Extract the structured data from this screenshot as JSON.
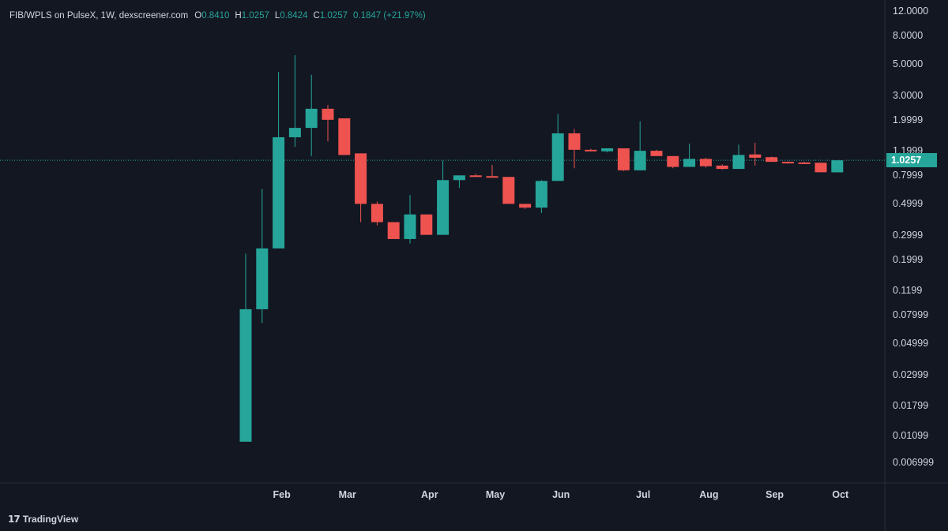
{
  "legend": {
    "symbol": "FIB/WPLS on PulseX, 1W, dexscreener.com",
    "o_key": "O",
    "o_val": "0.8410",
    "h_key": "H",
    "h_val": "1.0257",
    "l_key": "L",
    "l_val": "0.8424",
    "c_key": "C",
    "c_val": "1.0257",
    "change": "0.1847 (+21.97%)"
  },
  "brand": {
    "mark": "17",
    "name": "TradingView"
  },
  "colors": {
    "background": "#131722",
    "up": "#26a69a",
    "down": "#ef5350",
    "axis_line": "#2a2e39"
  },
  "chart_data": {
    "type": "candlestick",
    "y_scale": "log",
    "ylim": [
      0.0055,
      13.0
    ],
    "y_ticks": [
      "12.0000",
      "8.0000",
      "5.0000",
      "3.0000",
      "1.9999",
      "1.1999",
      "0.7999",
      "0.4999",
      "0.2999",
      "0.1999",
      "0.1199",
      "0.07999",
      "0.04999",
      "0.02999",
      "0.01799",
      "0.01099",
      "0.006999"
    ],
    "x_ticks": [
      "Feb",
      "Mar",
      "Apr",
      "May",
      "Jun",
      "Jul",
      "Aug",
      "Sep",
      "Oct"
    ],
    "last_price": "1.0257",
    "candles": [
      {
        "week": "Jan W4",
        "open": 0.0099,
        "high": 0.22,
        "low": 0.0099,
        "close": 0.088
      },
      {
        "week": "Jan W5",
        "open": 0.088,
        "high": 0.64,
        "low": 0.07,
        "close": 0.24
      },
      {
        "week": "Feb W1",
        "open": 0.24,
        "high": 4.4,
        "low": 0.24,
        "close": 1.5
      },
      {
        "week": "Feb W2",
        "open": 1.5,
        "high": 5.8,
        "low": 1.28,
        "close": 1.75
      },
      {
        "week": "Feb W3",
        "open": 1.75,
        "high": 4.2,
        "low": 1.1,
        "close": 2.4
      },
      {
        "week": "Feb W4",
        "open": 2.4,
        "high": 2.55,
        "low": 1.4,
        "close": 2.0
      },
      {
        "week": "Mar W1",
        "open": 2.05,
        "high": 2.05,
        "low": 1.12,
        "close": 1.12
      },
      {
        "week": "Mar W2",
        "open": 1.15,
        "high": 1.15,
        "low": 0.37,
        "close": 0.5
      },
      {
        "week": "Mar W3",
        "open": 0.5,
        "high": 0.52,
        "low": 0.35,
        "close": 0.37
      },
      {
        "week": "Mar W4",
        "open": 0.37,
        "high": 0.37,
        "low": 0.28,
        "close": 0.28
      },
      {
        "week": "Mar W5",
        "open": 0.28,
        "high": 0.58,
        "low": 0.26,
        "close": 0.42
      },
      {
        "week": "Apr W1",
        "open": 0.42,
        "high": 0.42,
        "low": 0.3,
        "close": 0.3
      },
      {
        "week": "Apr W2",
        "open": 0.3,
        "high": 1.02,
        "low": 0.3,
        "close": 0.74
      },
      {
        "week": "Apr W3",
        "open": 0.74,
        "high": 0.8,
        "low": 0.65,
        "close": 0.8
      },
      {
        "week": "Apr W4",
        "open": 0.8,
        "high": 0.82,
        "low": 0.78,
        "close": 0.79
      },
      {
        "week": "May W1",
        "open": 0.79,
        "high": 0.95,
        "low": 0.78,
        "close": 0.78
      },
      {
        "week": "May W2",
        "open": 0.78,
        "high": 0.78,
        "low": 0.5,
        "close": 0.5
      },
      {
        "week": "May W3",
        "open": 0.5,
        "high": 0.5,
        "low": 0.46,
        "close": 0.47
      },
      {
        "week": "May W4",
        "open": 0.47,
        "high": 0.74,
        "low": 0.43,
        "close": 0.73
      },
      {
        "week": "Jun W1",
        "open": 0.73,
        "high": 2.2,
        "low": 0.73,
        "close": 1.6
      },
      {
        "week": "Jun W2",
        "open": 1.6,
        "high": 1.72,
        "low": 0.9,
        "close": 1.22
      },
      {
        "week": "Jun W3",
        "open": 1.22,
        "high": 1.24,
        "low": 1.2,
        "close": 1.21
      },
      {
        "week": "Jun W4",
        "open": 1.19,
        "high": 1.25,
        "low": 1.17,
        "close": 1.25
      },
      {
        "week": "Jun W5",
        "open": 1.25,
        "high": 1.25,
        "low": 0.86,
        "close": 0.87
      },
      {
        "week": "Jul W1",
        "open": 0.87,
        "high": 1.95,
        "low": 0.87,
        "close": 1.2
      },
      {
        "week": "Jul W2",
        "open": 1.2,
        "high": 1.22,
        "low": 1.1,
        "close": 1.1
      },
      {
        "week": "Jul W3",
        "open": 1.1,
        "high": 1.1,
        "low": 0.9,
        "close": 0.92
      },
      {
        "week": "Jul W4",
        "open": 0.92,
        "high": 1.35,
        "low": 0.92,
        "close": 1.05
      },
      {
        "week": "Aug W1",
        "open": 1.05,
        "high": 1.07,
        "low": 0.91,
        "close": 0.93
      },
      {
        "week": "Aug W2",
        "open": 0.94,
        "high": 0.96,
        "low": 0.88,
        "close": 0.89
      },
      {
        "week": "Aug W3",
        "open": 0.89,
        "high": 1.33,
        "low": 0.89,
        "close": 1.12
      },
      {
        "week": "Aug W4",
        "open": 1.13,
        "high": 1.37,
        "low": 0.94,
        "close": 1.07
      },
      {
        "week": "Sep W1",
        "open": 1.08,
        "high": 1.09,
        "low": 1.0,
        "close": 1.0
      },
      {
        "week": "Sep W2",
        "open": 1.0,
        "high": 1.01,
        "low": 0.99,
        "close": 0.99
      },
      {
        "week": "Sep W3",
        "open": 0.99,
        "high": 1.0,
        "low": 0.97,
        "close": 0.98
      },
      {
        "week": "Sep W4",
        "open": 0.985,
        "high": 0.99,
        "low": 0.84,
        "close": 0.8424
      },
      {
        "week": "Oct W1",
        "open": 0.841,
        "high": 1.0257,
        "low": 0.8424,
        "close": 1.0257
      }
    ]
  }
}
